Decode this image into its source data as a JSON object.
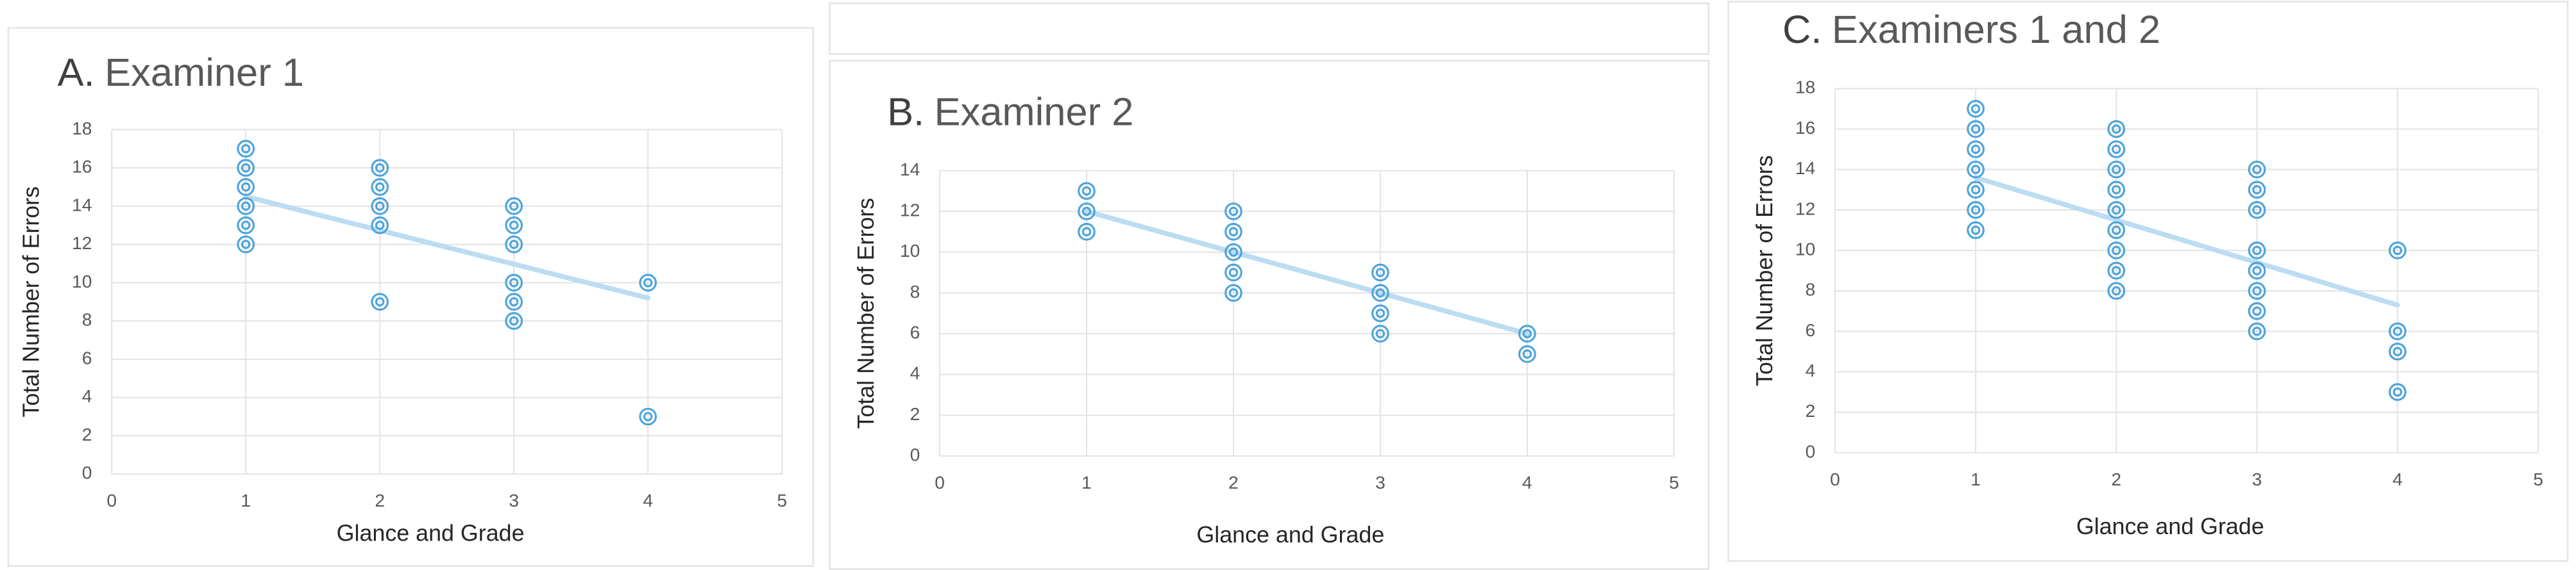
{
  "chart_data": [
    {
      "type": "scatter",
      "label": "A.",
      "title": "Examiner 1",
      "xlabel": "Glance and Grade",
      "ylabel": "Total Number of Errors",
      "xlim": [
        0,
        5
      ],
      "xticks": [
        0,
        1,
        2,
        3,
        4,
        5
      ],
      "ylim": [
        0,
        18
      ],
      "yticks": [
        0,
        2,
        4,
        6,
        8,
        10,
        12,
        14,
        16,
        18
      ],
      "grid": true,
      "color": "#4aa3dc",
      "x": [
        1,
        1,
        1,
        1,
        1,
        1,
        2,
        2,
        2,
        2,
        2,
        3,
        3,
        3,
        3,
        3,
        3,
        4,
        4
      ],
      "y": [
        17,
        16,
        15,
        14,
        13,
        12,
        16,
        15,
        14,
        13,
        9,
        14,
        13,
        12,
        10,
        9,
        8,
        10,
        3
      ],
      "trendline": {
        "x": [
          1,
          4
        ],
        "y": [
          14.5,
          9.2
        ],
        "color": "#bcdcf2"
      }
    },
    {
      "type": "scatter",
      "label": "B.",
      "title": "Examiner 2",
      "xlabel": "Glance and Grade",
      "ylabel": "Total Number of Errors",
      "xlim": [
        0,
        5
      ],
      "xticks": [
        0,
        1,
        2,
        3,
        4,
        5
      ],
      "ylim": [
        0,
        14
      ],
      "yticks": [
        0,
        2,
        4,
        6,
        8,
        10,
        12,
        14
      ],
      "grid": true,
      "color": "#4aa3dc",
      "x": [
        1,
        1,
        1,
        2,
        2,
        2,
        2,
        2,
        3,
        3,
        3,
        3,
        4,
        4
      ],
      "y": [
        13,
        12,
        11,
        12,
        11,
        10,
        9,
        8,
        9,
        8,
        7,
        6,
        6,
        5
      ],
      "trendline": {
        "x": [
          1,
          4
        ],
        "y": [
          12,
          6
        ],
        "color": "#bcdcf2"
      }
    },
    {
      "type": "scatter",
      "label": "C.",
      "title": "Examiners 1 and 2",
      "xlabel": "Glance and Grade",
      "ylabel": "Total Number of Errors",
      "xlim": [
        0,
        5
      ],
      "xticks": [
        0,
        1,
        2,
        3,
        4,
        5
      ],
      "ylim": [
        0,
        18
      ],
      "yticks": [
        0,
        2,
        4,
        6,
        8,
        10,
        12,
        14,
        16,
        18
      ],
      "grid": true,
      "color": "#4aa3dc",
      "x": [
        1,
        1,
        1,
        1,
        1,
        1,
        1,
        2,
        2,
        2,
        2,
        2,
        2,
        2,
        2,
        2,
        3,
        3,
        3,
        3,
        3,
        3,
        3,
        3,
        4,
        4,
        4,
        4
      ],
      "y": [
        17,
        16,
        15,
        14,
        13,
        12,
        11,
        16,
        15,
        14,
        13,
        12,
        11,
        10,
        9,
        8,
        14,
        13,
        12,
        10,
        9,
        8,
        7,
        6,
        10,
        6,
        5,
        3
      ],
      "trendline": {
        "x": [
          1,
          4
        ],
        "y": [
          13.6,
          7.3
        ],
        "color": "#bcdcf2"
      }
    }
  ]
}
